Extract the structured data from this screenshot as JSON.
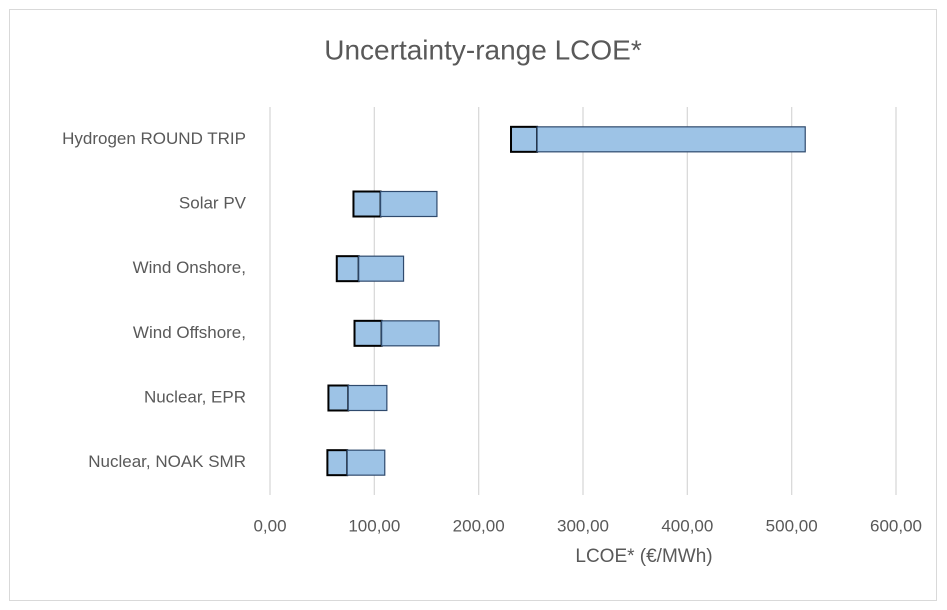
{
  "chart_data": {
    "type": "bar",
    "orientation": "horizontal",
    "stacked": true,
    "title": "Uncertainty-range LCOE*",
    "x_label": "LCOE* (€/MWh)",
    "categories": [
      "Hydrogen ROUND TRIP",
      "Solar PV",
      "Wind Onshore,",
      "Wind Offshore,",
      "Nuclear,  EPR",
      "Nuclear, NOAK SMR"
    ],
    "series": [
      {
        "color": "none",
        "values": [
          231,
          80,
          64,
          81,
          56,
          55
        ]
      },
      {
        "color": "#9dc3e6",
        "values": [
          25,
          26,
          21,
          26,
          19,
          19
        ]
      },
      {
        "color": "#9dc3e6",
        "values": [
          257,
          54,
          43,
          55,
          37,
          36
        ]
      }
    ],
    "xlim": [
      0,
      600
    ],
    "xticks": [
      {
        "value": 0,
        "label": "0,00"
      },
      {
        "value": 100,
        "label": "100,00"
      },
      {
        "value": 200,
        "label": "200,00"
      },
      {
        "value": 300,
        "label": "300,00"
      },
      {
        "value": 400,
        "label": "400,00"
      },
      {
        "value": 500,
        "label": "500,00"
      },
      {
        "value": 600,
        "label": "600,00"
      }
    ],
    "grid": true
  }
}
